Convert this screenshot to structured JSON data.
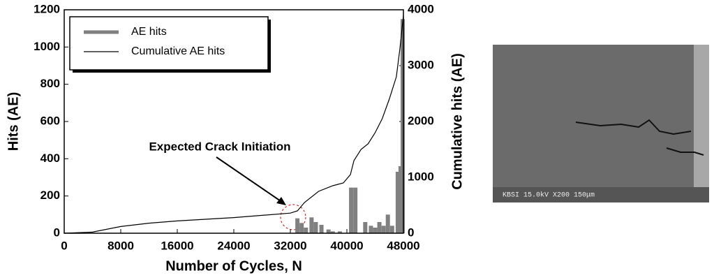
{
  "chart_data": {
    "type": "combo",
    "xlabel": "Number of Cycles, N",
    "ylabel": "Hits (AE)",
    "y2label": "Cumulative hits (AE)",
    "annotation": "Expected Crack Initiation",
    "xlim": [
      0,
      48000
    ],
    "xticks": [
      0,
      8000,
      16000,
      24000,
      32000,
      40000,
      48000
    ],
    "ylim": [
      0,
      1200
    ],
    "yticks": [
      0,
      200,
      400,
      600,
      800,
      1000,
      1200
    ],
    "y2lim": [
      0,
      4000
    ],
    "y2ticks": [
      0,
      1000,
      2000,
      3000,
      4000
    ],
    "legend": "upper left",
    "series": [
      {
        "name": "AE hits",
        "type": "bar",
        "color": "#808080",
        "x": [
          33000,
          33600,
          34200,
          35000,
          35600,
          36400,
          37400,
          38000,
          39000,
          40600,
          41200,
          42600,
          43400,
          44000,
          44600,
          45200,
          45800,
          46400,
          47200,
          47600,
          47900
        ],
        "values": [
          80,
          55,
          30,
          85,
          60,
          45,
          20,
          10,
          10,
          245,
          245,
          60,
          40,
          30,
          60,
          40,
          100,
          40,
          330,
          360,
          1150
        ]
      },
      {
        "name": "Cumulative AE hits",
        "type": "line",
        "color": "#000000",
        "axis": "y2",
        "x": [
          0,
          4000,
          8000,
          12000,
          16000,
          20000,
          24000,
          28000,
          32000,
          33000,
          34000,
          36000,
          38000,
          39500,
          40500,
          41000,
          42000,
          43000,
          44000,
          45000,
          46000,
          47000,
          47500,
          48000
        ],
        "values": [
          0,
          20,
          120,
          180,
          220,
          250,
          280,
          320,
          360,
          400,
          550,
          750,
          850,
          900,
          1050,
          1300,
          1500,
          1600,
          1800,
          2050,
          2400,
          2800,
          3300,
          3900
        ]
      }
    ]
  },
  "image": {
    "caption": "KBSI   15.0kV  X200   150μm"
  }
}
